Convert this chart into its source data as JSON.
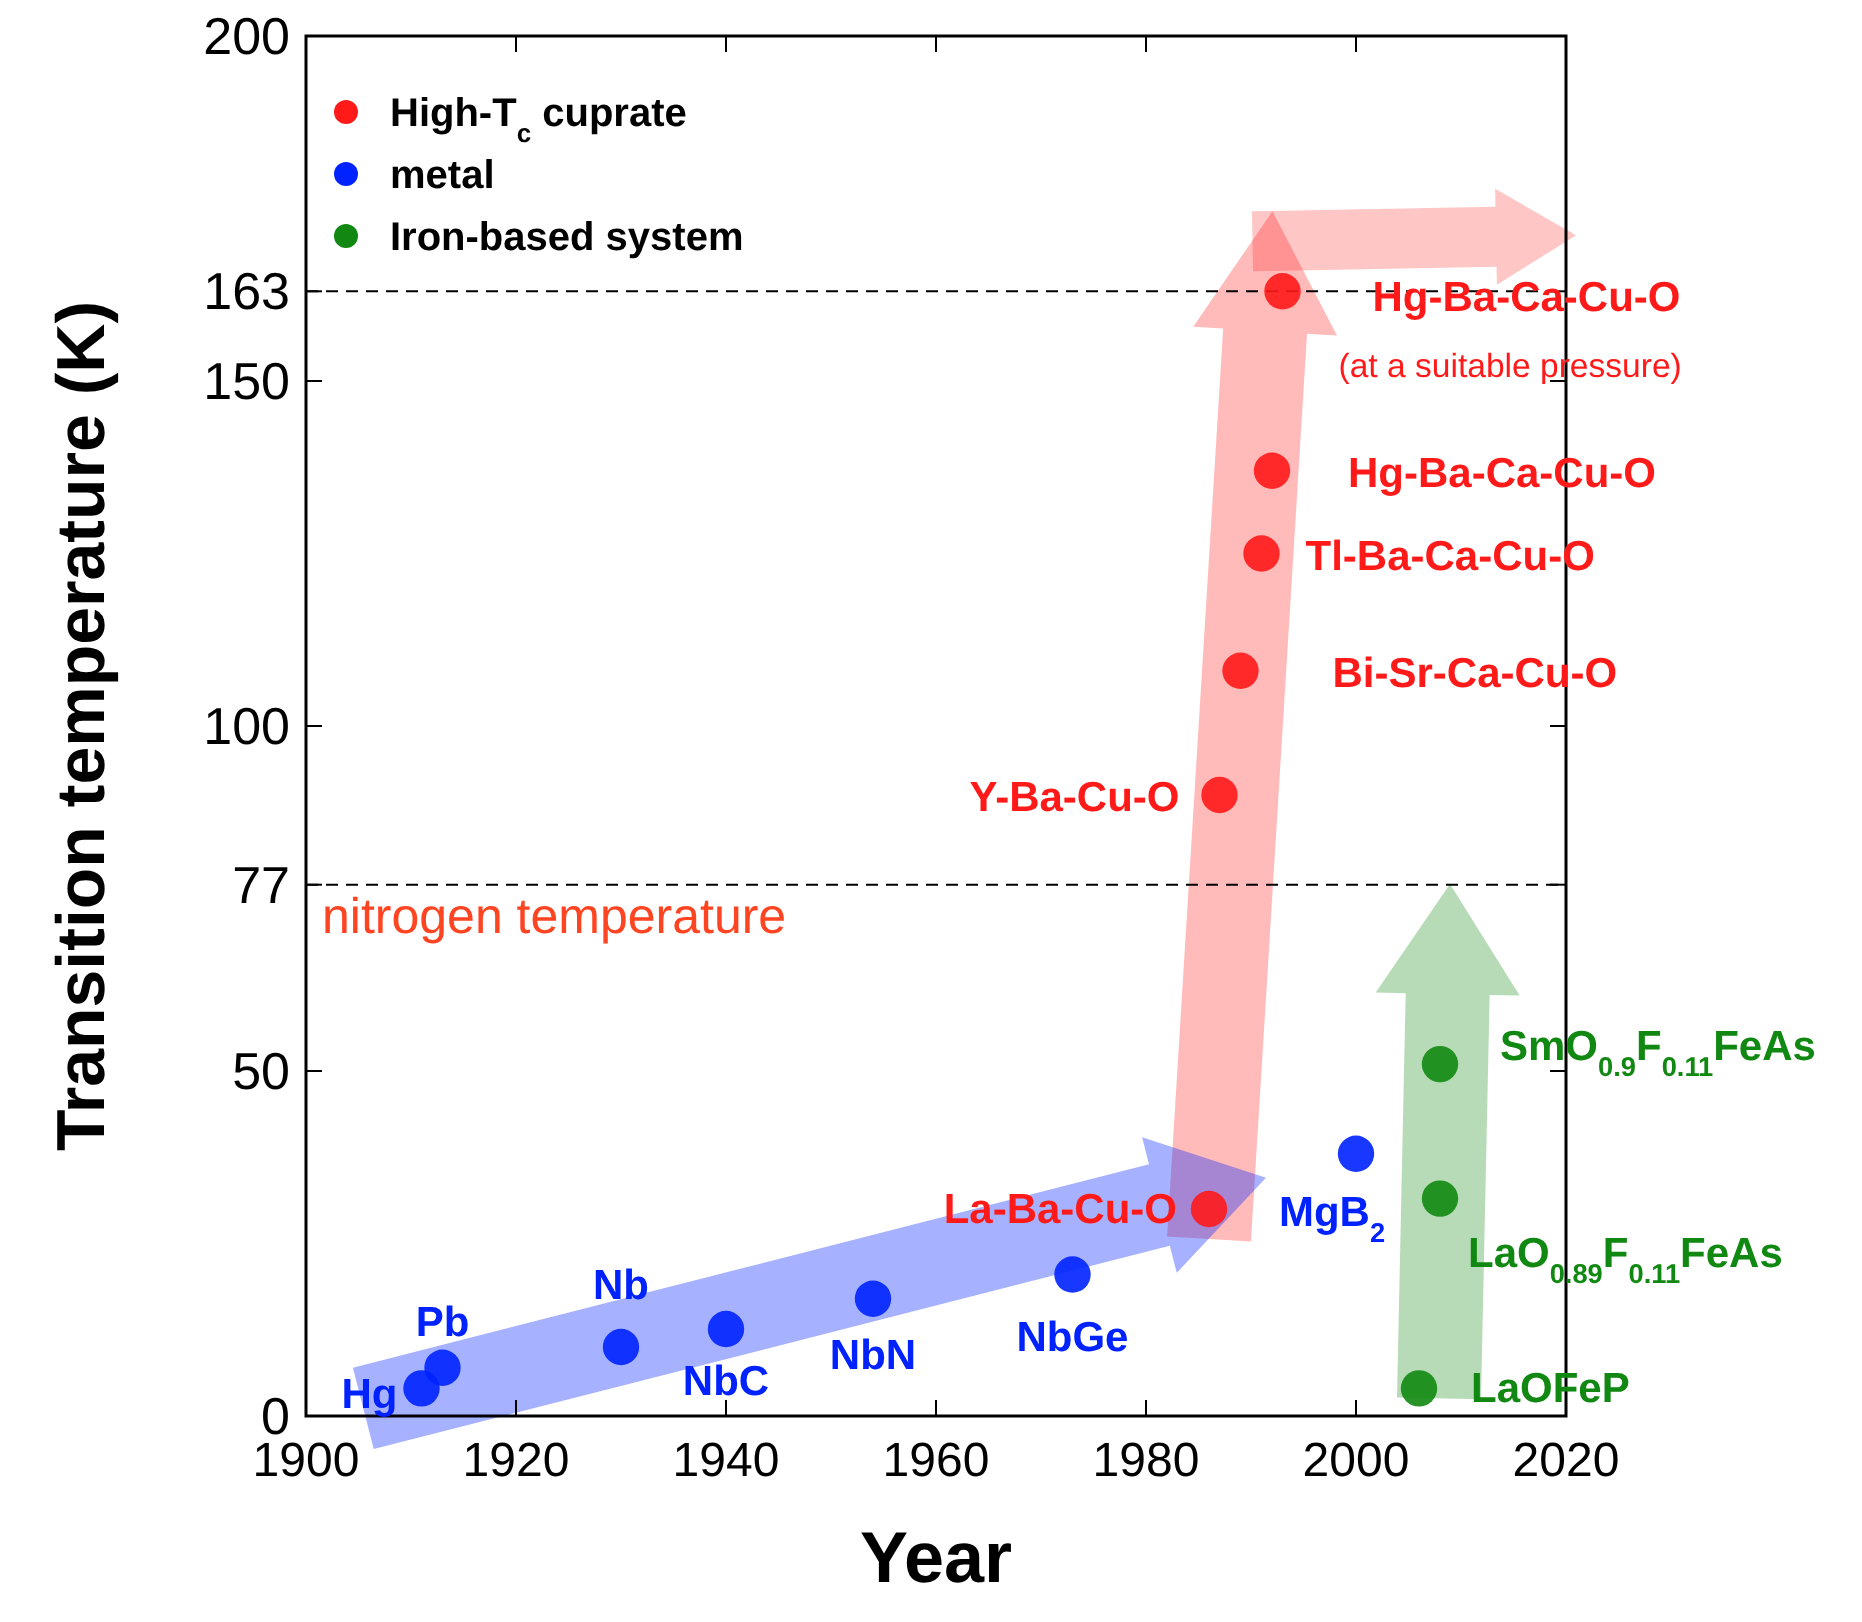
{
  "chart_data": {
    "type": "scatter",
    "xlabel": "Year",
    "ylabel": "Transition temperature (K)",
    "xlim": [
      1900,
      2020
    ],
    "xticks": [
      1900,
      1920,
      1940,
      1960,
      1980,
      2000,
      2020
    ],
    "ylim": [
      0,
      200
    ],
    "yticks": [
      0,
      50,
      77,
      100,
      150,
      163,
      200
    ],
    "marker": "circle",
    "grid": false,
    "legend": "top left",
    "series": [
      {
        "name": "High-T$_{c}$ cuprate",
        "color": "#ff1a1a",
        "x": [
          1986,
          1987,
          1989,
          1991,
          1992,
          1993
        ],
        "values": [
          30,
          90,
          108,
          125,
          137,
          163
        ]
      },
      {
        "name": "metal",
        "color": "#0022ff",
        "x": [
          1911,
          1913,
          1930,
          1940,
          1954,
          1973,
          2000
        ],
        "values": [
          4,
          7,
          10,
          12.6,
          17,
          20.5,
          38
        ]
      },
      {
        "name": "Iron-based system",
        "color": "#118811",
        "x": [
          2006,
          2008,
          2008
        ],
        "values": [
          4,
          31.5,
          51
        ]
      }
    ],
    "ref_lines": [
      {
        "axis": "y",
        "value": 77,
        "label": "nitrogen temperature",
        "color": "#000000",
        "line_style": "dashed"
      },
      {
        "axis": "y",
        "value": 163,
        "label": null,
        "color": "#000000",
        "line_style": "dashed"
      }
    ],
    "annotations": [
      {
        "text": "La-Ba-Cu-O",
        "x": 1986,
        "y": 30
      },
      {
        "text": "Y-Ba-Cu-O",
        "x": 1987,
        "y": 90
      },
      {
        "text": "Bi-Sr-Ca-Cu-O",
        "x": 1989,
        "y": 108
      },
      {
        "text": "Tl-Ba-Ca-Cu-O",
        "x": 1991,
        "y": 125
      },
      {
        "text": "Hg-Ba-Ca-Cu-O",
        "x": 1992,
        "y": 137
      },
      {
        "text": "Hg-Ba-Ca-Cu-O",
        "x": 1993,
        "y": 163
      },
      {
        "text": "(at a suitable pressure)",
        "x": 1993,
        "y": 163
      },
      {
        "text": "Hg",
        "x": 1911,
        "y": 4
      },
      {
        "text": "Pb",
        "x": 1913,
        "y": 7
      },
      {
        "text": "Nb",
        "x": 1930,
        "y": 10
      },
      {
        "text": "NbC",
        "x": 1940,
        "y": 12.6
      },
      {
        "text": "NbN",
        "x": 1954,
        "y": 17
      },
      {
        "text": "NbGe",
        "x": 1973,
        "y": 20.5
      },
      {
        "text": "MgB$_{2}$",
        "x": 2000,
        "y": 38
      },
      {
        "text": "LaOFeP",
        "x": 2006,
        "y": 4
      },
      {
        "text": "LaO$_{0.89}$F$_{0.11}$FeAs",
        "x": 2008,
        "y": 31.5
      },
      {
        "text": "SmO$_{0.9}$F$_{0.11}$FeAs",
        "x": 2008,
        "y": 51
      }
    ]
  }
}
